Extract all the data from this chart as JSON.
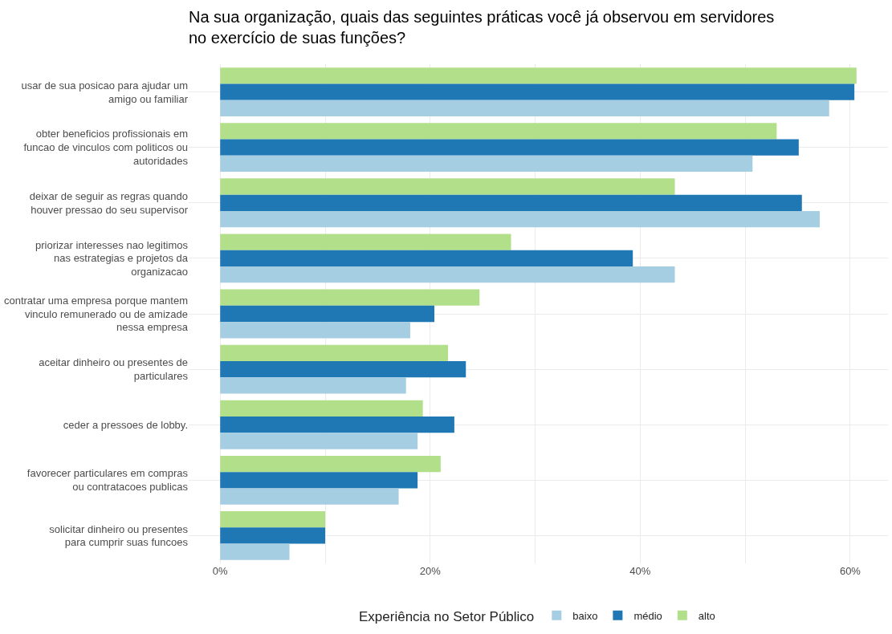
{
  "chart_data": {
    "type": "bar",
    "orientation": "horizontal",
    "title": "Na sua organização, quais das seguintes práticas você já observou em servidores\nno exercício de suas funções?",
    "categories": [
      "usar de sua posicao para ajudar um\namigo ou familiar",
      "obter beneficios profissionais em\nfuncao de vinculos com politicos ou\nautoridades",
      "deixar de seguir as regras quando\nhouver pressao do seu supervisor",
      "priorizar interesses nao legitimos\nnas estrategias e projetos da\norganizacao",
      "contratar uma empresa porque mantem\nvinculo remunerado ou de amizade\nnessa empresa",
      "aceitar dinheiro ou presentes de\nparticulares",
      "ceder a pressoes de lobby.",
      "favorecer particulares em compras\nou contratacoes publicas",
      "solicitar dinheiro ou presentes\npara cumprir suas funcoes"
    ],
    "series": [
      {
        "name": "alto",
        "color": "#b2df8a",
        "values": [
          60.6,
          53.0,
          43.3,
          27.7,
          24.7,
          21.7,
          19.3,
          21.0,
          10.0
        ]
      },
      {
        "name": "médio",
        "color": "#1f78b4",
        "values": [
          60.4,
          55.1,
          55.4,
          39.3,
          20.4,
          23.4,
          22.3,
          18.8,
          10.0
        ]
      },
      {
        "name": "baixo",
        "color": "#a6cee3",
        "values": [
          58.0,
          50.7,
          57.1,
          43.3,
          18.1,
          17.7,
          18.8,
          17.0,
          6.6
        ]
      }
    ],
    "xlim": [
      -3.0,
      63.6
    ],
    "xticks": [
      {
        "value": 0,
        "label": "0%"
      },
      {
        "value": 10,
        "label": null
      },
      {
        "value": 20,
        "label": "20%"
      },
      {
        "value": 30,
        "label": null
      },
      {
        "value": 40,
        "label": "40%"
      },
      {
        "value": 50,
        "label": null
      },
      {
        "value": 60,
        "label": "60%"
      }
    ],
    "legend_title": "Experiência no Setor Público",
    "legend": "bottom",
    "grid": true
  }
}
